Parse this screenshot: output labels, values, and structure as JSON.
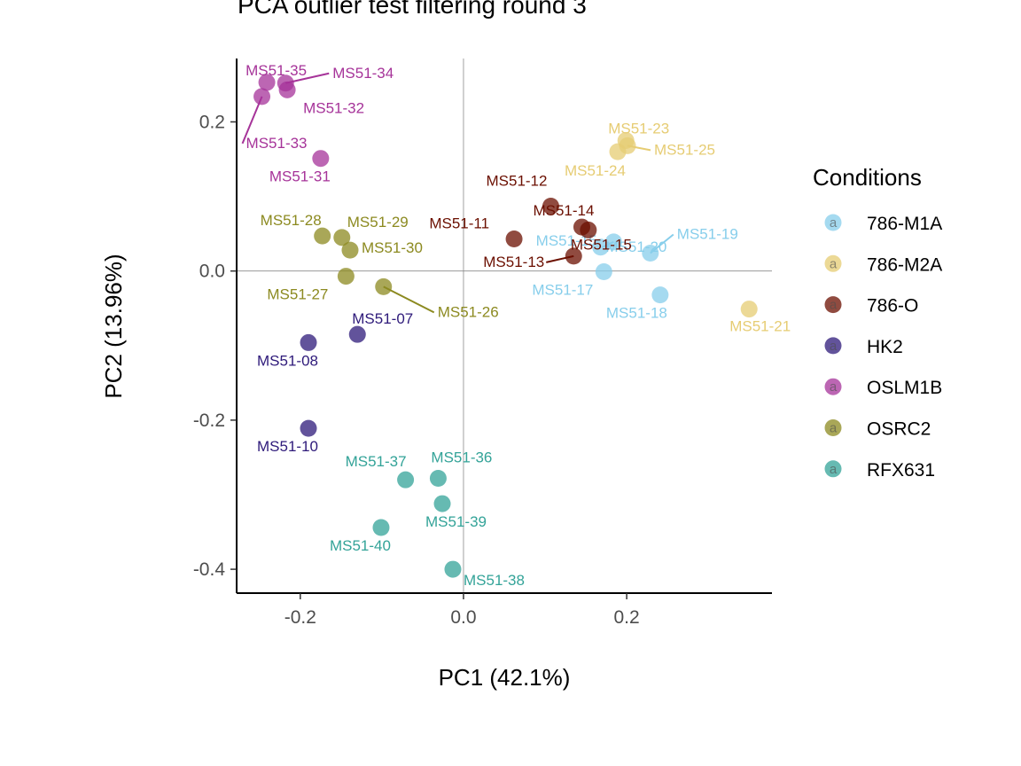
{
  "chart_data": {
    "type": "scatter",
    "title": "PCA outlier test filtering round  3",
    "xlabel": "PC1 (42.1%)",
    "ylabel": "PC2 (13.96%)",
    "xlim": [
      -0.278,
      0.378
    ],
    "ylim": [
      -0.432,
      0.285
    ],
    "xticks": [
      -0.2,
      0.0,
      0.2
    ],
    "xtick_labels": [
      "-0.2",
      "0.0",
      "0.2"
    ],
    "yticks": [
      -0.4,
      -0.2,
      0.0,
      0.2
    ],
    "ytick_labels": [
      "-0.4",
      "-0.2",
      "0.0",
      "0.2"
    ],
    "reference_lines": {
      "x": 0,
      "y": 0
    },
    "grid": false,
    "legend": {
      "title": "Conditions",
      "placement": "right",
      "entries": [
        {
          "name": "786-M1A",
          "color": "#87CEEB"
        },
        {
          "name": "786-M2A",
          "color": "#E6CC73"
        },
        {
          "name": "786-O",
          "color": "#6B0F00"
        },
        {
          "name": "HK2",
          "color": "#2E1A7A"
        },
        {
          "name": "OSLM1B",
          "color": "#A63399"
        },
        {
          "name": "OSRC2",
          "color": "#8C8A20"
        },
        {
          "name": "RFX631",
          "color": "#33A398"
        }
      ]
    },
    "series": [
      {
        "name": "786-M1A",
        "points": [
          {
            "label": "MS51-15",
            "x": 0.168,
            "y": 0.032
          },
          {
            "label": "MS51-17",
            "x": 0.172,
            "y": -0.001
          },
          {
            "label": "MS51-18",
            "x": 0.241,
            "y": -0.032
          },
          {
            "label": "MS51-19",
            "x": 0.229,
            "y": 0.024
          },
          {
            "label": "MS51-20",
            "x": 0.184,
            "y": 0.039
          }
        ]
      },
      {
        "name": "786-M2A",
        "points": [
          {
            "label": "MS51-21",
            "x": 0.35,
            "y": -0.051
          },
          {
            "label": "MS51-23",
            "x": 0.199,
            "y": 0.175
          },
          {
            "label": "MS51-24",
            "x": 0.189,
            "y": 0.16
          },
          {
            "label": "MS51-25",
            "x": 0.201,
            "y": 0.168
          }
        ]
      },
      {
        "name": "786-O",
        "points": [
          {
            "label": "MS51-11",
            "x": 0.062,
            "y": 0.043
          },
          {
            "label": "MS51-12",
            "x": 0.107,
            "y": 0.087
          },
          {
            "label": "MS51-13",
            "x": 0.135,
            "y": 0.02
          },
          {
            "label": "MS51-14",
            "x": 0.145,
            "y": 0.059
          },
          {
            "label": "MS51-15",
            "x": 0.153,
            "y": 0.055
          }
        ]
      },
      {
        "name": "HK2",
        "points": [
          {
            "label": "MS51-07",
            "x": -0.13,
            "y": -0.085
          },
          {
            "label": "MS51-08",
            "x": -0.19,
            "y": -0.096
          },
          {
            "label": "MS51-10",
            "x": -0.19,
            "y": -0.211
          }
        ]
      },
      {
        "name": "OSLM1B",
        "points": [
          {
            "label": "MS51-31",
            "x": -0.175,
            "y": 0.151
          },
          {
            "label": "MS51-32",
            "x": -0.216,
            "y": 0.243
          },
          {
            "label": "MS51-33",
            "x": -0.247,
            "y": 0.234
          },
          {
            "label": "MS51-34",
            "x": -0.218,
            "y": 0.252
          },
          {
            "label": "MS51-35",
            "x": -0.241,
            "y": 0.253
          }
        ]
      },
      {
        "name": "OSRC2",
        "points": [
          {
            "label": "MS51-26",
            "x": -0.098,
            "y": -0.021
          },
          {
            "label": "MS51-27",
            "x": -0.144,
            "y": -0.007
          },
          {
            "label": "MS51-28",
            "x": -0.173,
            "y": 0.047
          },
          {
            "label": "MS51-29",
            "x": -0.149,
            "y": 0.045
          },
          {
            "label": "MS51-30",
            "x": -0.139,
            "y": 0.028
          }
        ]
      },
      {
        "name": "RFX631",
        "points": [
          {
            "label": "MS51-36",
            "x": -0.031,
            "y": -0.278
          },
          {
            "label": "MS51-37",
            "x": -0.071,
            "y": -0.28
          },
          {
            "label": "MS51-38",
            "x": -0.013,
            "y": -0.4
          },
          {
            "label": "MS51-39",
            "x": -0.026,
            "y": -0.312
          },
          {
            "label": "MS51-40",
            "x": -0.101,
            "y": -0.344
          }
        ]
      }
    ]
  }
}
